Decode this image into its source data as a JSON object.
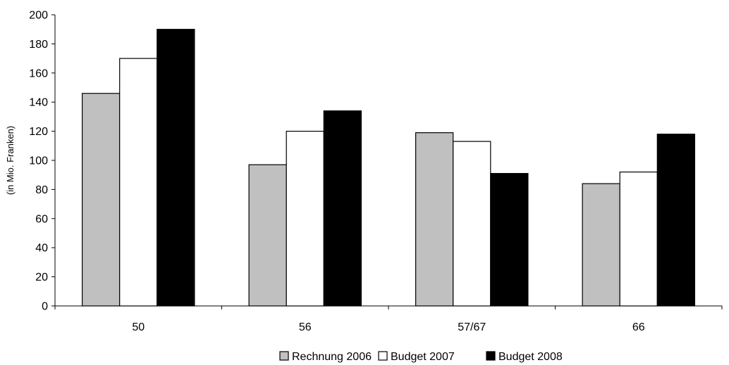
{
  "chart_data": {
    "type": "bar",
    "categories": [
      "50",
      "56",
      "57/67",
      "66"
    ],
    "series": [
      {
        "name": "Rechnung 2006",
        "values": [
          146,
          97,
          119,
          84
        ],
        "color": "#c0c0c0"
      },
      {
        "name": "Budget 2007",
        "values": [
          170,
          120,
          113,
          92
        ],
        "color": "#ffffff"
      },
      {
        "name": "Budget 2008",
        "values": [
          190,
          134,
          91,
          118
        ],
        "color": "#000000"
      }
    ],
    "title": "",
    "xlabel": "",
    "ylabel": "(in Mio. Franken)",
    "ylim": [
      0,
      200
    ],
    "yticks": [
      0,
      20,
      40,
      60,
      80,
      100,
      120,
      140,
      160,
      180,
      200
    ],
    "grid": false,
    "legend_position": "bottom"
  }
}
